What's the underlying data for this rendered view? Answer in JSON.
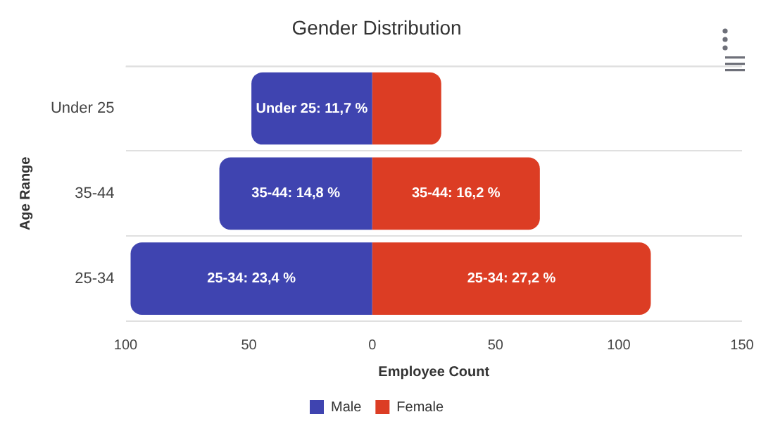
{
  "chart_data": {
    "type": "bar",
    "orientation": "horizontal",
    "stacked": true,
    "title": "Gender Distribution",
    "xlabel": "Employee Count",
    "ylabel": "Age Range",
    "categories": [
      "Under 25",
      "35-44",
      "25-34"
    ],
    "series": [
      {
        "name": "Male",
        "color": "#3f44b0",
        "values": [
          -49,
          -62,
          -98
        ]
      },
      {
        "name": "Female",
        "color": "#dc3d24",
        "values": [
          28,
          68,
          113
        ]
      }
    ],
    "annotations": [
      {
        "text": "Under 25: 11,7 %",
        "x": -24.5,
        "y": "Under 25"
      },
      {
        "text": "35-44: 14,8 %",
        "x": -31,
        "y": "35-44"
      },
      {
        "text": "25-34: 23,4 %",
        "x": -49,
        "y": "25-34"
      },
      {
        "text": "35-44: 16,2 %",
        "x": 34,
        "y": "35-44"
      },
      {
        "text": "25-34: 27,2 %",
        "x": 56.5,
        "y": "25-34"
      }
    ],
    "xlim": [
      -100,
      150
    ],
    "xticks": [
      {
        "value": -100,
        "label": "100"
      },
      {
        "value": -50,
        "label": "50"
      },
      0,
      50,
      100,
      150
    ],
    "grid": "y",
    "legend": "bottom"
  }
}
